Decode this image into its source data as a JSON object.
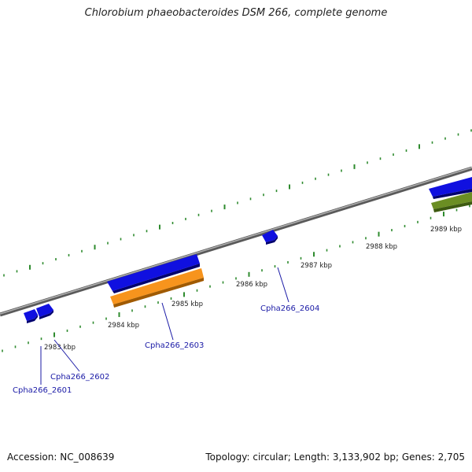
{
  "title": "Chlorobium phaeobacteroides DSM 266, complete genome",
  "footer": {
    "accession": "Accession: NC_008639",
    "summary": "Topology: circular; Length: 3,133,902 bp; Genes: 2,705"
  },
  "colors": {
    "backbone": "#8a8a8a",
    "tick": "#2e8b2e",
    "gene_forward": "#1010e0",
    "gene_highlight": "#f7941d",
    "gene_other": "#6b8e23",
    "label": "#1a1aa6"
  },
  "scale": {
    "labels": [
      "2983 kbp",
      "2984 kbp",
      "2985 kbp",
      "2986 kbp",
      "2987 kbp",
      "2988 kbp",
      "2989 kbp"
    ]
  },
  "genes": [
    {
      "label": "Cpha266_2601"
    },
    {
      "label": "Cpha266_2602"
    },
    {
      "label": "Cpha266_2603"
    },
    {
      "label": "Cpha266_2604"
    }
  ]
}
